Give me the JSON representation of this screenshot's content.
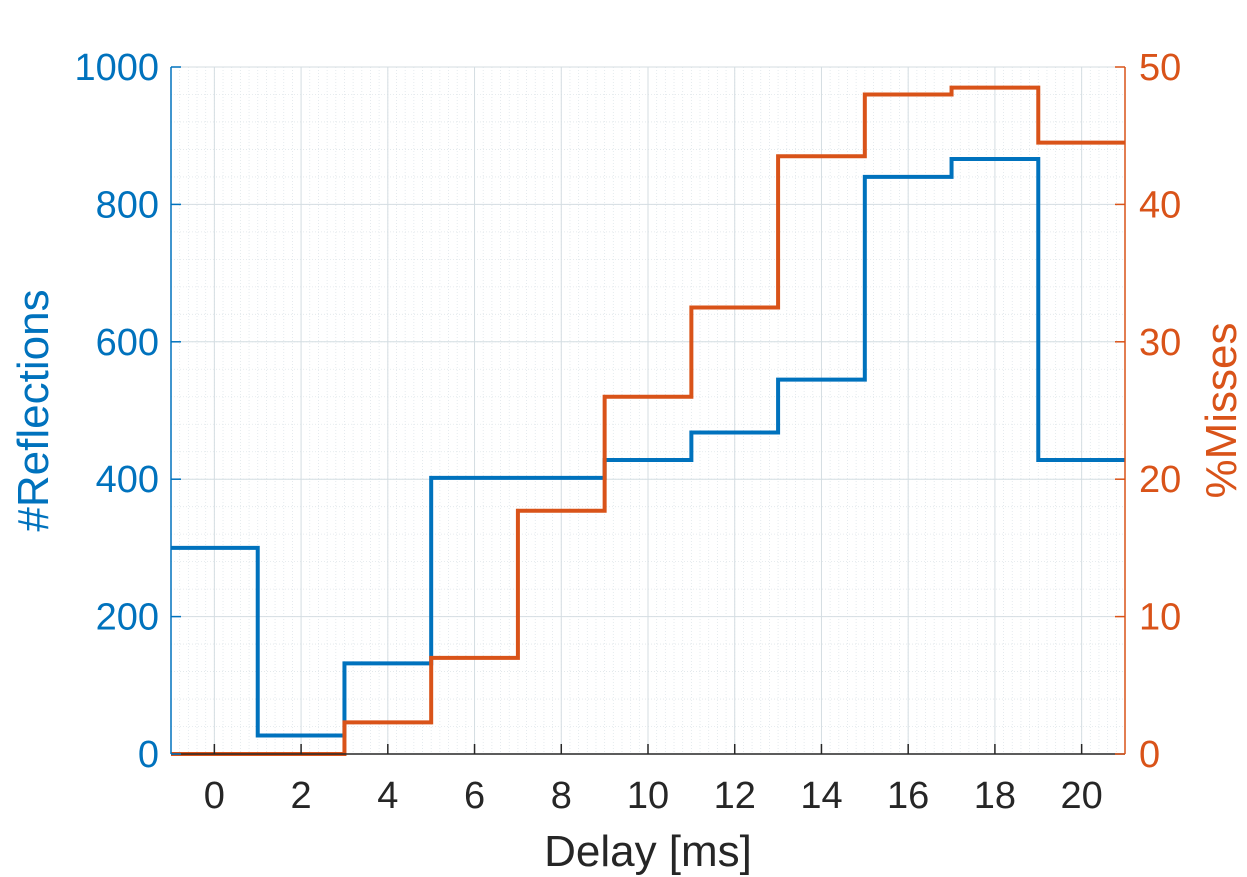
{
  "chart_data": {
    "type": "line",
    "step": true,
    "title": "",
    "xlabel": "Delay [ms]",
    "ylabel_left": "#Reflections",
    "ylabel_right": "%Misses",
    "xlim": [
      -1,
      21
    ],
    "ylim_left": [
      0,
      1000
    ],
    "ylim_right": [
      0,
      50
    ],
    "x_ticks": [
      0,
      2,
      4,
      6,
      8,
      10,
      12,
      14,
      16,
      18,
      20
    ],
    "x_tick_labels": [
      "0",
      "2",
      "4",
      "6",
      "8",
      "10",
      "12",
      "14",
      "16",
      "18",
      "20"
    ],
    "y_left_ticks": [
      0,
      200,
      400,
      600,
      800,
      1000
    ],
    "y_left_tick_labels": [
      "0",
      "200",
      "400",
      "600",
      "800",
      "1000"
    ],
    "y_right_ticks": [
      0,
      10,
      20,
      30,
      40,
      50
    ],
    "y_right_tick_labels": [
      "0",
      "10",
      "20",
      "30",
      "40",
      "50"
    ],
    "grid": true,
    "minor_grid": true,
    "bin_edges": [
      -1,
      1,
      3,
      5,
      7,
      9,
      11,
      13,
      15,
      17,
      19,
      21
    ],
    "series": [
      {
        "axis": "left",
        "color": "#0072BD",
        "values": [
          300,
          27,
          132,
          402,
          402,
          428,
          468,
          545,
          840,
          866,
          428
        ]
      },
      {
        "axis": "right",
        "color": "#D95319",
        "values": [
          0,
          0,
          2.3,
          7.0,
          17.7,
          26.0,
          32.5,
          43.5,
          48.0,
          48.5,
          44.5
        ]
      }
    ],
    "colors": {
      "left_axis": "#0072BD",
      "right_axis": "#D95319",
      "text": "#262626",
      "grid": "#dfe6ea"
    }
  }
}
